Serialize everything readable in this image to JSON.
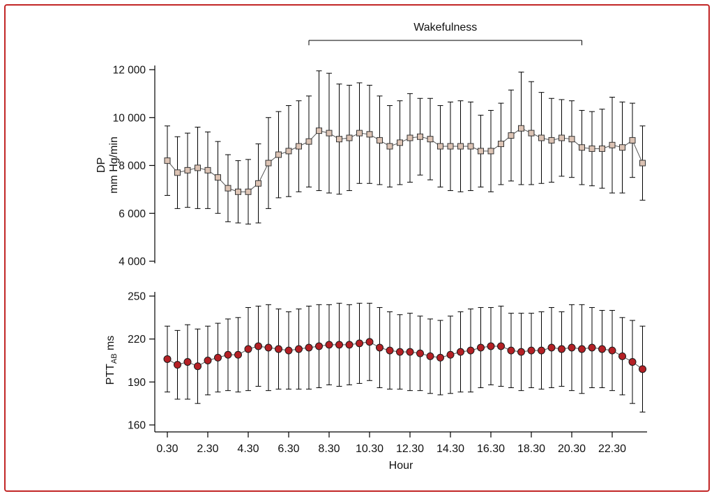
{
  "figure": {
    "border_color": "#c22626",
    "background": "#ffffff"
  },
  "chart_data": {
    "type": "line",
    "title": "",
    "xlabel": "Hour",
    "legend": "none",
    "grid": false,
    "annotation": {
      "label": "Wakefulness",
      "x_from": 7.5,
      "x_to": 21.0
    },
    "x": [
      0.5,
      1,
      1.5,
      2,
      2.5,
      3,
      3.5,
      4,
      4.5,
      5,
      5.5,
      6,
      6.5,
      7,
      7.5,
      8,
      8.5,
      9,
      9.5,
      10,
      10.5,
      11,
      11.5,
      12,
      12.5,
      13,
      13.5,
      14,
      14.5,
      15,
      15.5,
      16,
      16.5,
      17,
      17.5,
      18,
      18.5,
      19,
      19.5,
      20,
      20.5,
      21,
      21.5,
      22,
      22.5,
      23,
      23.5,
      24
    ],
    "xticks": {
      "values": [
        0.5,
        2.5,
        4.5,
        6.5,
        8.5,
        10.5,
        12.5,
        14.5,
        16.5,
        18.5,
        20.5,
        22.5
      ],
      "labels": [
        "0.30",
        "2.30",
        "4.30",
        "6.30",
        "8.30",
        "10.30",
        "12.30",
        "14.30",
        "16.30",
        "18.30",
        "20.30",
        "22.30"
      ]
    },
    "panels": [
      {
        "name": "dp",
        "ylabel_lines": [
          [
            {
              "t": "DP"
            }
          ],
          [
            {
              "t": "mm Hg/min"
            }
          ]
        ],
        "ylim": [
          4000,
          12000
        ],
        "yticks": [
          {
            "v": 4000,
            "label": "4 000"
          },
          {
            "v": 6000,
            "label": "6 000"
          },
          {
            "v": 8000,
            "label": "8 000"
          },
          {
            "v": 10000,
            "label": "10 000"
          },
          {
            "v": 12000,
            "label": "12 000"
          }
        ],
        "marker": "square",
        "marker_color": "#dcc3b4",
        "marker_edge": "#333333",
        "line_color": "#555555",
        "values": [
          8200,
          7700,
          7800,
          7900,
          7800,
          7500,
          7050,
          6900,
          6900,
          7250,
          8100,
          8450,
          8600,
          8800,
          9000,
          9450,
          9350,
          9100,
          9150,
          9350,
          9300,
          9050,
          8800,
          8950,
          9150,
          9200,
          9100,
          8800,
          8800,
          8800,
          8800,
          8600,
          8600,
          8900,
          9250,
          9550,
          9350,
          9150,
          9050,
          9150,
          9100,
          8750,
          8700,
          8700,
          8850,
          8750,
          9050,
          8100
        ],
        "errors": [
          1450,
          1500,
          1550,
          1700,
          1600,
          1500,
          1400,
          1300,
          1350,
          1650,
          1900,
          1800,
          1900,
          1900,
          1900,
          2500,
          2500,
          2300,
          2200,
          2100,
          2050,
          1850,
          1700,
          1750,
          1850,
          1600,
          1700,
          1700,
          1850,
          1900,
          1850,
          1500,
          1700,
          1700,
          1900,
          2350,
          2150,
          1900,
          1750,
          1600,
          1600,
          1550,
          1550,
          1650,
          2000,
          1900,
          1550,
          1550
        ]
      },
      {
        "name": "ptt",
        "ylabel_lines": [
          [
            {
              "t": "PTT"
            },
            {
              "t": "AB",
              "sub": true
            },
            {
              "t": " ms"
            }
          ]
        ],
        "ylim": [
          160,
          250
        ],
        "yticks": [
          {
            "v": 160,
            "label": "160"
          },
          {
            "v": 190,
            "label": "190"
          },
          {
            "v": 220,
            "label": "220"
          },
          {
            "v": 250,
            "label": "250"
          }
        ],
        "marker": "circle",
        "marker_color": "#b42025",
        "marker_edge": "#1a1a1a",
        "line_color": "#555555",
        "values": [
          206,
          202,
          204,
          201,
          205,
          207,
          209,
          209,
          213,
          215,
          214,
          213,
          212,
          213,
          214,
          215,
          216,
          216,
          216,
          217,
          218,
          214,
          212,
          211,
          211,
          210,
          208,
          207,
          209,
          211,
          212,
          214,
          215,
          215,
          212,
          211,
          212,
          212,
          214,
          213,
          214,
          213,
          214,
          213,
          212,
          208,
          204,
          199
        ],
        "errors": [
          23,
          24,
          26,
          26,
          24,
          24,
          25,
          26,
          29,
          28,
          30,
          28,
          27,
          28,
          29,
          29,
          28,
          29,
          28,
          28,
          27,
          28,
          27,
          26,
          27,
          26,
          26,
          26,
          27,
          28,
          29,
          28,
          27,
          28,
          26,
          27,
          26,
          27,
          28,
          26,
          30,
          31,
          28,
          27,
          28,
          27,
          29,
          30
        ]
      }
    ]
  }
}
